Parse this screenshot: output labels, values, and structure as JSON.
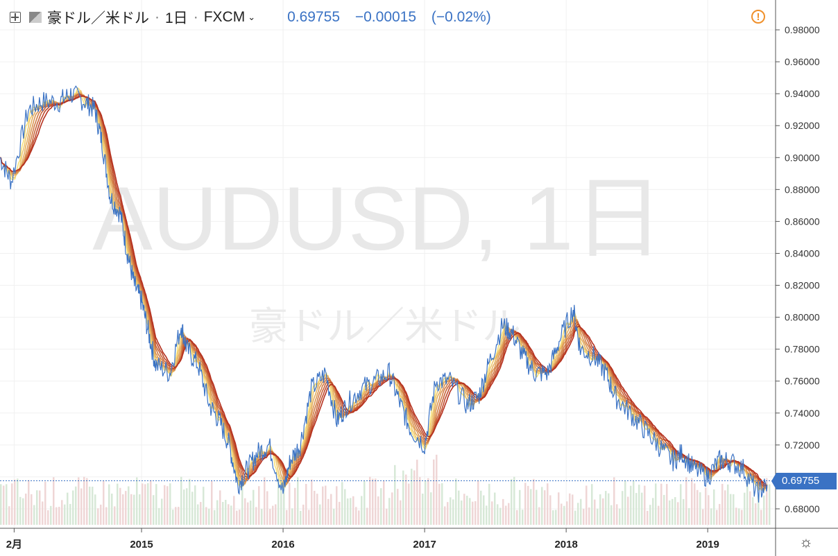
{
  "header": {
    "symbol_name": "豪ドル／米ドル",
    "interval": "1日",
    "source": "FXCM",
    "price": "0.69755",
    "change": "−0.00015",
    "change_pct": "(−0.02%)"
  },
  "watermark": {
    "main": "AUDUSD, 1日",
    "sub": "豪ドル／米ドル"
  },
  "current_price_label": "0.69755",
  "colors": {
    "price_line": "#3a72c4",
    "ribbon_fast": "#f7e07a",
    "ribbon_slow": "#b5301e",
    "volume": "#cfe2cf",
    "warning": "#f0902a"
  },
  "icons": {
    "layout": "plus-square-icon",
    "flag": "flag-icon",
    "warning": "alert-circle-icon",
    "settings": "gear-icon"
  },
  "chart_data": {
    "type": "line",
    "x_tick_labels": [
      "2月",
      "2015",
      "2016",
      "2017",
      "2018",
      "2019"
    ],
    "x_tick_years": [
      2014.1,
      2015,
      2016,
      2017,
      2018,
      2019
    ],
    "ylim": [
      0.67,
      0.99
    ],
    "y_ticks": [
      "0.98000",
      "0.96000",
      "0.94000",
      "0.92000",
      "0.90000",
      "0.88000",
      "0.86000",
      "0.84000",
      "0.82000",
      "0.80000",
      "0.78000",
      "0.76000",
      "0.74000",
      "0.72000",
      "0.70000",
      "0.68000"
    ],
    "grid": true,
    "series": [
      {
        "x": [
          2014.0,
          2014.08,
          2014.2,
          2014.3,
          2014.42,
          2014.5,
          2014.6,
          2014.67,
          2014.72,
          2014.78,
          2014.85,
          2014.9,
          2014.95,
          2015.0,
          2015.05,
          2015.1,
          2015.2,
          2015.28,
          2015.32,
          2015.4,
          2015.48,
          2015.55,
          2015.62,
          2015.68,
          2015.75,
          2015.82,
          2015.9,
          2016.0,
          2016.05,
          2016.12,
          2016.2,
          2016.3,
          2016.38,
          2016.45,
          2016.55,
          2016.65,
          2016.75,
          2016.83,
          2016.9,
          2017.0,
          2017.08,
          2017.18,
          2017.3,
          2017.38,
          2017.45,
          2017.55,
          2017.62,
          2017.7,
          2017.78,
          2017.87,
          2017.95,
          2018.05,
          2018.1,
          2018.2,
          2018.28,
          2018.35,
          2018.45,
          2018.55,
          2018.65,
          2018.75,
          2018.82,
          2018.9,
          2019.0,
          2019.08,
          2019.15,
          2019.25,
          2019.35,
          2019.42
        ],
        "y": [
          0.9,
          0.885,
          0.93,
          0.935,
          0.935,
          0.94,
          0.935,
          0.93,
          0.91,
          0.875,
          0.865,
          0.84,
          0.82,
          0.81,
          0.79,
          0.77,
          0.765,
          0.795,
          0.78,
          0.77,
          0.745,
          0.735,
          0.72,
          0.695,
          0.705,
          0.715,
          0.72,
          0.69,
          0.71,
          0.72,
          0.755,
          0.765,
          0.735,
          0.745,
          0.755,
          0.76,
          0.765,
          0.745,
          0.73,
          0.72,
          0.76,
          0.76,
          0.745,
          0.75,
          0.77,
          0.795,
          0.79,
          0.775,
          0.765,
          0.765,
          0.785,
          0.805,
          0.78,
          0.775,
          0.765,
          0.75,
          0.74,
          0.73,
          0.72,
          0.71,
          0.715,
          0.705,
          0.7,
          0.71,
          0.71,
          0.705,
          0.69,
          0.695
        ]
      }
    ]
  }
}
